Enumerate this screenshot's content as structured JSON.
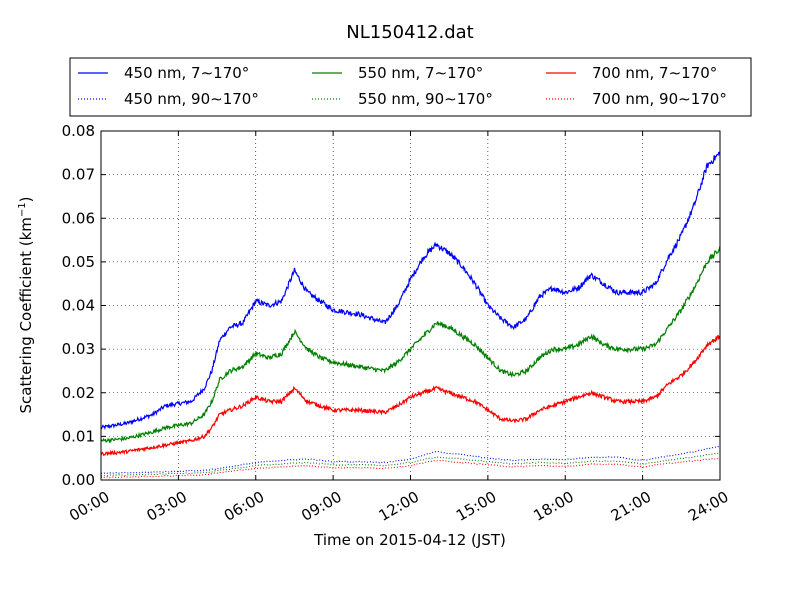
{
  "chart_data": {
    "type": "line",
    "title": "NL150412.dat",
    "xlabel": "Time on 2015-04-12 (JST)",
    "ylabel": "Scattering Coefficient (km",
    "ylabel_unit_exponent": "−1",
    "ylabel_suffix": ")",
    "x_unit": "hours",
    "xlim": [
      0,
      24
    ],
    "ylim": [
      0,
      0.08
    ],
    "xticks": [
      0,
      3,
      6,
      9,
      12,
      15,
      18,
      21,
      24
    ],
    "xtick_labels": [
      "00:00",
      "03:00",
      "06:00",
      "09:00",
      "12:00",
      "15:00",
      "18:00",
      "21:00",
      "24:00"
    ],
    "yticks": [
      0,
      0.01,
      0.02,
      0.03,
      0.04,
      0.05,
      0.06,
      0.07,
      0.08
    ],
    "ytick_labels": [
      "0.00",
      "0.01",
      "0.02",
      "0.03",
      "0.04",
      "0.05",
      "0.06",
      "0.07",
      "0.08"
    ],
    "grid": true,
    "legend_position": "top, above plot",
    "series": [
      {
        "name": "450 nm, 7∼170°",
        "color": "#0000ff",
        "style": "solid",
        "x": [
          0,
          1,
          2,
          2.5,
          3,
          3.5,
          4,
          4.3,
          4.6,
          5,
          5.5,
          6,
          6.5,
          7,
          7.5,
          8,
          8.5,
          9,
          10,
          11,
          11.5,
          12,
          12.5,
          13,
          13.5,
          14,
          14.5,
          15,
          15.5,
          16,
          16.5,
          17,
          17.5,
          18,
          18.5,
          19,
          19.5,
          20,
          20.5,
          21,
          21.5,
          22,
          22.5,
          23,
          23.5,
          24
        ],
        "y": [
          0.012,
          0.013,
          0.015,
          0.017,
          0.0175,
          0.018,
          0.021,
          0.025,
          0.032,
          0.035,
          0.036,
          0.041,
          0.04,
          0.041,
          0.048,
          0.043,
          0.041,
          0.039,
          0.038,
          0.036,
          0.04,
          0.046,
          0.051,
          0.054,
          0.052,
          0.049,
          0.045,
          0.04,
          0.037,
          0.035,
          0.037,
          0.042,
          0.044,
          0.043,
          0.044,
          0.047,
          0.045,
          0.043,
          0.043,
          0.043,
          0.045,
          0.051,
          0.056,
          0.063,
          0.072,
          0.075
        ]
      },
      {
        "name": "550 nm, 7∼170°",
        "color": "#008000",
        "style": "solid",
        "x": [
          0,
          1,
          2,
          2.5,
          3,
          3.5,
          4,
          4.3,
          4.6,
          5,
          5.5,
          6,
          6.5,
          7,
          7.5,
          8,
          8.5,
          9,
          10,
          11,
          11.5,
          12,
          12.5,
          13,
          13.5,
          14,
          14.5,
          15,
          15.5,
          16,
          16.5,
          17,
          17.5,
          18,
          18.5,
          19,
          19.5,
          20,
          20.5,
          21,
          21.5,
          22,
          22.5,
          23,
          23.5,
          24
        ],
        "y": [
          0.009,
          0.0095,
          0.011,
          0.012,
          0.0125,
          0.013,
          0.015,
          0.018,
          0.023,
          0.025,
          0.026,
          0.029,
          0.028,
          0.029,
          0.034,
          0.03,
          0.028,
          0.027,
          0.026,
          0.025,
          0.027,
          0.03,
          0.033,
          0.036,
          0.035,
          0.033,
          0.031,
          0.028,
          0.025,
          0.024,
          0.025,
          0.028,
          0.03,
          0.03,
          0.031,
          0.033,
          0.031,
          0.03,
          0.03,
          0.03,
          0.031,
          0.035,
          0.039,
          0.044,
          0.05,
          0.053
        ]
      },
      {
        "name": "700 nm, 7∼170°",
        "color": "#ff0000",
        "style": "solid",
        "x": [
          0,
          1,
          2,
          2.5,
          3,
          3.5,
          4,
          4.3,
          4.6,
          5,
          5.5,
          6,
          6.5,
          7,
          7.5,
          8,
          8.5,
          9,
          10,
          11,
          11.5,
          12,
          12.5,
          13,
          13.5,
          14,
          14.5,
          15,
          15.5,
          16,
          16.5,
          17,
          17.5,
          18,
          18.5,
          19,
          19.5,
          20,
          20.5,
          21,
          21.5,
          22,
          22.5,
          23,
          23.5,
          24
        ],
        "y": [
          0.006,
          0.0065,
          0.0075,
          0.008,
          0.0085,
          0.009,
          0.01,
          0.012,
          0.015,
          0.016,
          0.017,
          0.019,
          0.018,
          0.018,
          0.021,
          0.018,
          0.017,
          0.016,
          0.016,
          0.0155,
          0.017,
          0.019,
          0.02,
          0.021,
          0.02,
          0.019,
          0.018,
          0.016,
          0.014,
          0.0135,
          0.014,
          0.016,
          0.017,
          0.018,
          0.019,
          0.02,
          0.019,
          0.018,
          0.018,
          0.018,
          0.019,
          0.022,
          0.024,
          0.027,
          0.031,
          0.033
        ]
      },
      {
        "name": "450 nm, 90∼170°",
        "color": "#0000ff",
        "style": "dotted",
        "x": [
          0,
          2,
          4,
          5,
          6,
          7,
          8,
          9,
          10,
          11,
          12,
          13,
          14,
          15,
          16,
          17,
          18,
          19,
          20,
          21,
          22,
          23,
          24
        ],
        "y": [
          0.0015,
          0.0018,
          0.0022,
          0.003,
          0.004,
          0.0045,
          0.0048,
          0.0042,
          0.0042,
          0.004,
          0.0048,
          0.0065,
          0.0058,
          0.005,
          0.0045,
          0.0048,
          0.0047,
          0.0052,
          0.0052,
          0.0045,
          0.0055,
          0.0065,
          0.0078
        ]
      },
      {
        "name": "550 nm, 90∼170°",
        "color": "#008000",
        "style": "dotted",
        "x": [
          0,
          2,
          4,
          5,
          6,
          7,
          8,
          9,
          10,
          11,
          12,
          13,
          14,
          15,
          16,
          17,
          18,
          19,
          20,
          21,
          22,
          23,
          24
        ],
        "y": [
          0.001,
          0.0013,
          0.0017,
          0.0025,
          0.0033,
          0.0037,
          0.004,
          0.0035,
          0.0035,
          0.0033,
          0.004,
          0.0053,
          0.0048,
          0.0042,
          0.0037,
          0.004,
          0.0038,
          0.0043,
          0.0043,
          0.0037,
          0.0045,
          0.0053,
          0.0062
        ]
      },
      {
        "name": "700 nm, 90∼170°",
        "color": "#ff0000",
        "style": "dotted",
        "x": [
          0,
          2,
          4,
          5,
          6,
          7,
          8,
          9,
          10,
          11,
          12,
          13,
          14,
          15,
          16,
          17,
          18,
          19,
          20,
          21,
          22,
          23,
          24
        ],
        "y": [
          0.0006,
          0.0008,
          0.0012,
          0.002,
          0.0026,
          0.003,
          0.0033,
          0.0028,
          0.0028,
          0.0027,
          0.0033,
          0.0045,
          0.004,
          0.0035,
          0.003,
          0.0033,
          0.0031,
          0.0036,
          0.0036,
          0.003,
          0.0038,
          0.0044,
          0.005
        ]
      }
    ]
  }
}
